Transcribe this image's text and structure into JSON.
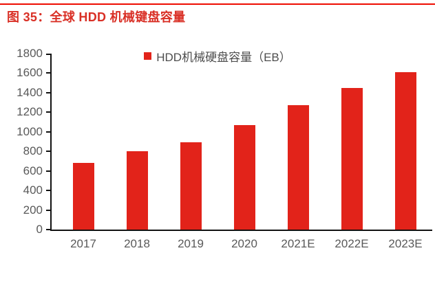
{
  "chart_data": {
    "type": "bar",
    "title": "图 35：全球 HDD 机械键盘容量",
    "legend": "HDD机械硬盘容量（EB）",
    "legend_position": "top-center",
    "categories": [
      "2017",
      "2018",
      "2019",
      "2020",
      "2021E",
      "2022E",
      "2023E"
    ],
    "values": [
      680,
      800,
      890,
      1070,
      1270,
      1450,
      1610
    ],
    "xlabel": "",
    "ylabel": "",
    "ylim": [
      0,
      1800
    ],
    "ytick_step": 200,
    "grid": false,
    "bar_color": "#e2231a",
    "axis_color": "#111111",
    "tick_label_color": "#595959",
    "title_color": "#d93026",
    "top_rule_color": "#ee0b00"
  }
}
